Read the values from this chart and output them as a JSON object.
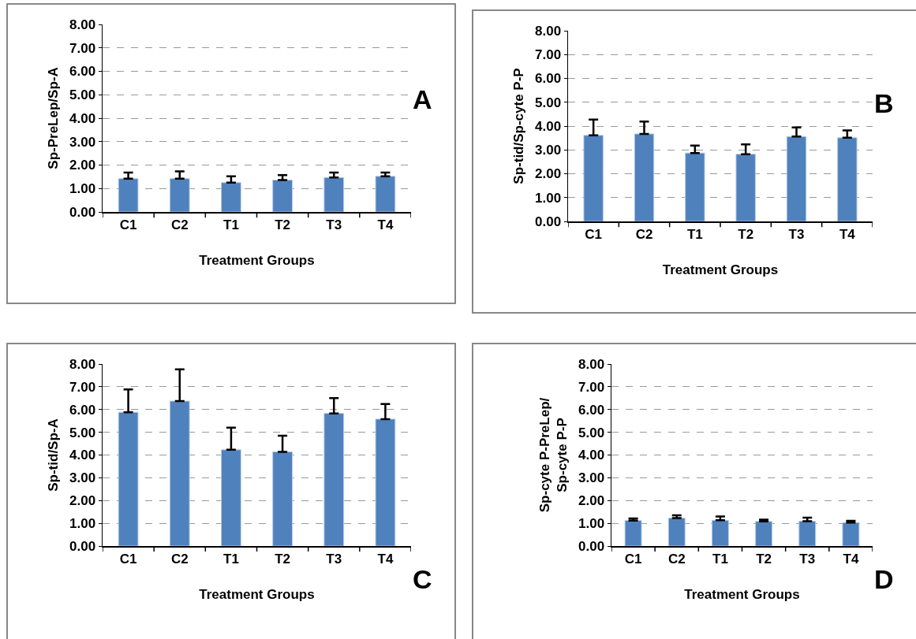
{
  "chart_data": [
    {
      "type": "bar",
      "ylabel": "Sp-PreLep/Sp-A",
      "xlabel": "Treatment Groups",
      "annotations": [
        "A"
      ],
      "categories": [
        "C1",
        "C2",
        "T1",
        "T2",
        "T3",
        "T4"
      ],
      "values": [
        1.42,
        1.42,
        1.25,
        1.36,
        1.47,
        1.52
      ],
      "errors": [
        [
          1.42,
          1.68
        ],
        [
          1.42,
          1.73
        ],
        [
          1.25,
          1.52
        ],
        [
          1.36,
          1.57
        ],
        [
          1.47,
          1.68
        ],
        [
          1.52,
          1.68
        ]
      ],
      "color": "#4f81bd",
      "ylim": [
        0,
        8
      ],
      "yticks": [
        {
          "value": 0,
          "label": "0.00"
        },
        {
          "value": 1,
          "label": "1.00"
        },
        {
          "value": 2,
          "label": "2.00"
        },
        {
          "value": 3,
          "label": "3.00"
        },
        {
          "value": 4,
          "label": "4.00"
        },
        {
          "value": 5,
          "label": "5.00"
        },
        {
          "value": 6,
          "label": "6.00"
        },
        {
          "value": 7,
          "label": "7.00"
        },
        {
          "value": 8,
          "label": "8.00"
        }
      ],
      "grid": "y"
    },
    {
      "type": "bar",
      "ylabel": "Sp-tid/Sp-cyte P-P",
      "xlabel": "Treatment Groups",
      "annotations": [
        "B"
      ],
      "categories": [
        "C1",
        "C2",
        "T1",
        "T2",
        "T3",
        "T4"
      ],
      "values": [
        3.61,
        3.67,
        2.87,
        2.82,
        3.56,
        3.51
      ],
      "errors": [
        [
          3.61,
          4.27
        ],
        [
          3.67,
          4.19
        ],
        [
          2.87,
          3.18
        ],
        [
          2.82,
          3.23
        ],
        [
          3.56,
          3.94
        ],
        [
          3.51,
          3.82
        ]
      ],
      "color": "#4f81bd",
      "ylim": [
        0,
        8
      ],
      "yticks": [
        {
          "value": 0,
          "label": "0.00"
        },
        {
          "value": 1,
          "label": "1.00"
        },
        {
          "value": 2,
          "label": "2.00"
        },
        {
          "value": 3,
          "label": "3.00"
        },
        {
          "value": 4,
          "label": "4.00"
        },
        {
          "value": 5,
          "label": "5.00"
        },
        {
          "value": 6,
          "label": "6.00"
        },
        {
          "value": 7,
          "label": "7.00"
        },
        {
          "value": 8,
          "label": "8.00"
        }
      ],
      "grid": "y"
    },
    {
      "type": "bar",
      "ylabel": "Sp-tid/Sp-A",
      "xlabel": "Treatment Groups",
      "annotations": [
        "C"
      ],
      "categories": [
        "C1",
        "C2",
        "T1",
        "T2",
        "T3",
        "T4"
      ],
      "values": [
        5.88,
        6.37,
        4.23,
        4.14,
        5.83,
        5.58
      ],
      "errors": [
        [
          5.88,
          6.88
        ],
        [
          6.37,
          7.77
        ],
        [
          4.23,
          5.2
        ],
        [
          4.14,
          4.85
        ],
        [
          5.83,
          6.5
        ],
        [
          5.58,
          6.24
        ]
      ],
      "color": "#4f81bd",
      "ylim": [
        0,
        8
      ],
      "yticks": [
        {
          "value": 0,
          "label": "0.00"
        },
        {
          "value": 1,
          "label": "1.00"
        },
        {
          "value": 2,
          "label": "2.00"
        },
        {
          "value": 3,
          "label": "3.00"
        },
        {
          "value": 4,
          "label": "4.00"
        },
        {
          "value": 5,
          "label": "5.00"
        },
        {
          "value": 6,
          "label": "6.00"
        },
        {
          "value": 7,
          "label": "7.00"
        },
        {
          "value": 8,
          "label": "8.00"
        }
      ],
      "grid": "y"
    },
    {
      "type": "bar",
      "ylabel": "Sp-cyte P-PreLep/\nSp-cyte P-P",
      "xlabel": "Treatment Groups",
      "annotations": [
        "D"
      ],
      "categories": [
        "C1",
        "C2",
        "T1",
        "T2",
        "T3",
        "T4"
      ],
      "values": [
        1.12,
        1.23,
        1.13,
        1.08,
        1.09,
        1.03
      ],
      "errors": [
        [
          1.12,
          1.21
        ],
        [
          1.23,
          1.35
        ],
        [
          1.13,
          1.3
        ],
        [
          1.08,
          1.16
        ],
        [
          1.09,
          1.25
        ],
        [
          1.03,
          1.11
        ]
      ],
      "color": "#4f81bd",
      "ylim": [
        0,
        8
      ],
      "yticks": [
        {
          "value": 0,
          "label": "0.00"
        },
        {
          "value": 1,
          "label": "1.00"
        },
        {
          "value": 2,
          "label": "2.00"
        },
        {
          "value": 3,
          "label": "3.00"
        },
        {
          "value": 4,
          "label": "4.00"
        },
        {
          "value": 5,
          "label": "5.00"
        },
        {
          "value": 6,
          "label": "6.00"
        },
        {
          "value": 7,
          "label": "7.00"
        },
        {
          "value": 8,
          "label": "8.00"
        }
      ],
      "grid": "y"
    }
  ]
}
